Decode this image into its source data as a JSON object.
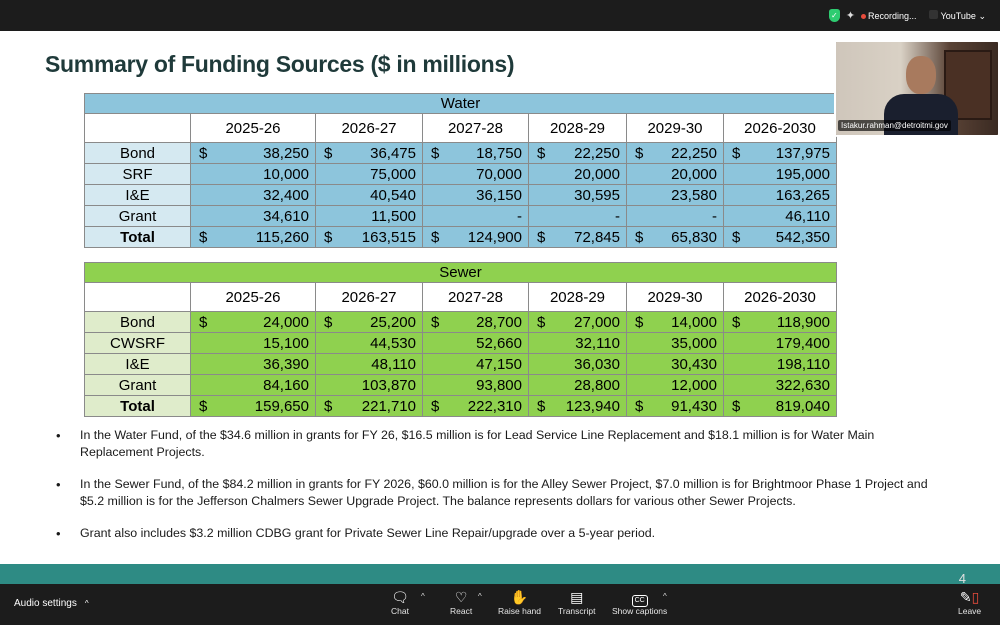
{
  "topbar": {
    "recording_label": "Recording...",
    "youtube_label": "YouTube"
  },
  "slide": {
    "title": "Summary of Funding Sources ($ in millions)",
    "page_number": "4",
    "water": {
      "title": "Water",
      "columns": [
        "2025-26",
        "2026-27",
        "2027-28",
        "2028-29",
        "2029-30",
        "2026-2030"
      ],
      "rows": [
        {
          "label": "Bond",
          "dollar": true,
          "values": [
            "38,250",
            "36,475",
            "18,750",
            "22,250",
            "22,250",
            "137,975"
          ]
        },
        {
          "label": "SRF",
          "dollar": false,
          "values": [
            "10,000",
            "75,000",
            "70,000",
            "20,000",
            "20,000",
            "195,000"
          ]
        },
        {
          "label": "I&E",
          "dollar": false,
          "values": [
            "32,400",
            "40,540",
            "36,150",
            "30,595",
            "23,580",
            "163,265"
          ]
        },
        {
          "label": "Grant",
          "dollar": false,
          "values": [
            "34,610",
            "11,500",
            "-",
            "-",
            "-",
            "46,110"
          ]
        },
        {
          "label": "Total",
          "dollar": true,
          "values": [
            "115,260",
            "163,515",
            "124,900",
            "72,845",
            "65,830",
            "542,350"
          ]
        }
      ]
    },
    "sewer": {
      "title": "Sewer",
      "columns": [
        "2025-26",
        "2026-27",
        "2027-28",
        "2028-29",
        "2029-30",
        "2026-2030"
      ],
      "rows": [
        {
          "label": "Bond",
          "dollar": true,
          "values": [
            "24,000",
            "25,200",
            "28,700",
            "27,000",
            "14,000",
            "118,900"
          ]
        },
        {
          "label": "CWSRF",
          "dollar": false,
          "values": [
            "15,100",
            "44,530",
            "52,660",
            "32,110",
            "35,000",
            "179,400"
          ]
        },
        {
          "label": "I&E",
          "dollar": false,
          "values": [
            "36,390",
            "48,110",
            "47,150",
            "36,030",
            "30,430",
            "198,110"
          ]
        },
        {
          "label": "Grant",
          "dollar": false,
          "values": [
            "84,160",
            "103,870",
            "93,800",
            "28,800",
            "12,000",
            "322,630"
          ]
        },
        {
          "label": "Total",
          "dollar": true,
          "values": [
            "159,650",
            "221,710",
            "222,310",
            "123,940",
            "91,430",
            "819,040"
          ]
        }
      ]
    },
    "bullets": [
      "In the Water Fund, of the $34.6 million in grants for FY 26, $16.5 million is for Lead Service Line Replacement and $18.1 million is for Water Main Replacement Projects.",
      "In the Sewer Fund, of the $84.2 million in grants for FY 2026, $60.0 million is for the Alley Sewer Project, $7.0 million is for Brightmoor Phase 1 Project and $5.2 million is for the Jefferson Chalmers Sewer Upgrade Project.  The balance represents dollars for various other Sewer Projects.",
      "Grant also includes $3.2 million CDBG grant for Private Sewer Line Repair/upgrade over a 5-year period."
    ]
  },
  "video": {
    "participant_name": "Istakur.rahman@detroitmi.gov"
  },
  "toolbar": {
    "audio_settings": "Audio settings",
    "chat": "Chat",
    "react": "React",
    "raise_hand": "Raise hand",
    "transcript": "Transcript",
    "show_captions": "Show captions",
    "cc_glyph": "CC",
    "leave": "Leave"
  },
  "colors": {
    "water_fill": "#8dc5dc",
    "water_label_fill": "#d5e9f1",
    "sewer_fill": "#8fd14f",
    "sewer_label_fill": "#dfeccb",
    "footer_band": "#2e8b84"
  },
  "icons": [
    "shield-check-icon",
    "sparkle-icon",
    "record-dot-icon",
    "chat-icon",
    "react-icon",
    "raise-hand-icon",
    "transcript-icon",
    "captions-icon",
    "leave-icon"
  ]
}
